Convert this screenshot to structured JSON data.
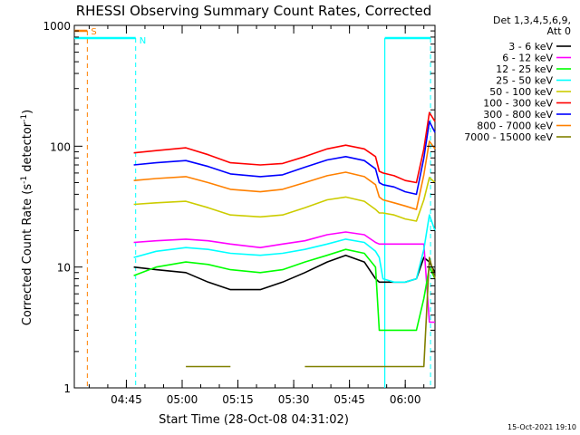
{
  "chart_data": {
    "type": "line",
    "title": "RHESSI Observing Summary Count Rates, Corrected",
    "xlabel": "Start Time (28-Oct-08 04:31:02)",
    "ylabel_main": "Corrected Count Rate (s",
    "ylabel_sup1": "-1",
    "ylabel_mid": " detector",
    "ylabel_sup2": "-1",
    "ylabel_end": ")",
    "y_scale": "log",
    "ylim": [
      1,
      1000
    ],
    "xlim_minutes": [
      0,
      97
    ],
    "y_ticks": [
      {
        "value": 1,
        "label": "1"
      },
      {
        "value": 10,
        "label": "10"
      },
      {
        "value": 100,
        "label": "100"
      },
      {
        "value": 1000,
        "label": "1000"
      }
    ],
    "x_ticks": [
      {
        "minutes": 14,
        "label": "04:45"
      },
      {
        "minutes": 29,
        "label": "05:00"
      },
      {
        "minutes": 44,
        "label": "05:15"
      },
      {
        "minutes": 59,
        "label": "05:30"
      },
      {
        "minutes": 74,
        "label": "05:45"
      },
      {
        "minutes": 89,
        "label": "06:00"
      }
    ],
    "legend_header": [
      "Det 1,3,4,5,6,9,",
      "Att 0"
    ],
    "legend_position": "right",
    "series": [
      {
        "name": "3 - 6 keV",
        "color": "#000000",
        "x": [
          16,
          22,
          30,
          36,
          42,
          50,
          56,
          62,
          68,
          73,
          78,
          81,
          82,
          83,
          86,
          89,
          92,
          94,
          95.5,
          97
        ],
        "y": [
          10,
          9.5,
          9,
          7.5,
          6.5,
          6.5,
          7.5,
          9,
          11,
          12.5,
          11,
          8,
          7.5,
          7.5,
          7.5,
          7.5,
          8,
          12,
          11,
          9
        ]
      },
      {
        "name": "6 - 12 keV",
        "color": "#ff00ff",
        "x": [
          16,
          22,
          30,
          36,
          42,
          50,
          56,
          62,
          68,
          73,
          78,
          81,
          82,
          83,
          86,
          89,
          92,
          94,
          95.5,
          97
        ],
        "y": [
          16,
          16.5,
          17,
          16.5,
          15.5,
          14.5,
          15.5,
          16.5,
          18.5,
          19.5,
          18.5,
          16,
          15.5,
          15.5,
          15.5,
          15.5,
          15.5,
          15.5,
          3.5,
          3.5
        ]
      },
      {
        "name": "12 - 25 keV",
        "color": "#00ff00",
        "x": [
          16,
          22,
          30,
          36,
          42,
          50,
          56,
          62,
          68,
          73,
          78,
          81,
          82,
          83,
          86,
          89,
          92,
          94,
          95.5,
          97
        ],
        "y": [
          8.5,
          10,
          11,
          10.5,
          9.5,
          9,
          9.5,
          11,
          12.5,
          14,
          13,
          10,
          3,
          3,
          3,
          3,
          3,
          5.5,
          10,
          8
        ]
      },
      {
        "name": "25 - 50 keV",
        "color": "#00ffff",
        "x": [
          16,
          22,
          30,
          36,
          42,
          50,
          56,
          62,
          68,
          73,
          78,
          81,
          82,
          83,
          86,
          89,
          92,
          94,
          95.5,
          97
        ],
        "y": [
          12,
          13.5,
          14.5,
          14,
          13,
          12.5,
          13,
          14,
          15.5,
          17,
          16,
          13.5,
          12,
          8,
          7.5,
          7.5,
          8,
          14,
          27,
          20
        ]
      },
      {
        "name": "50 - 100 keV",
        "color": "#cccc00",
        "x": [
          16,
          22,
          30,
          36,
          42,
          50,
          56,
          62,
          68,
          73,
          78,
          81,
          82,
          83,
          86,
          89,
          92,
          94,
          95.5,
          97
        ],
        "y": [
          33,
          34,
          35,
          31,
          27,
          26,
          27,
          31,
          36,
          38,
          35,
          30,
          28,
          28,
          27,
          25,
          24,
          36,
          55,
          50
        ]
      },
      {
        "name": "100 - 300 keV",
        "color": "#ff0000",
        "x": [
          16,
          22,
          30,
          36,
          42,
          50,
          56,
          62,
          68,
          73,
          78,
          81,
          82,
          83,
          86,
          89,
          92,
          94,
          95.5,
          97
        ],
        "y": [
          88,
          92,
          97,
          85,
          73,
          70,
          72,
          82,
          95,
          102,
          95,
          82,
          62,
          60,
          57,
          52,
          50,
          95,
          190,
          160
        ]
      },
      {
        "name": "300 - 800 keV",
        "color": "#0000ff",
        "x": [
          16,
          22,
          30,
          36,
          42,
          50,
          56,
          62,
          68,
          73,
          78,
          81,
          82,
          83,
          86,
          89,
          92,
          94,
          95.5,
          97
        ],
        "y": [
          70,
          73,
          76,
          68,
          59,
          56,
          58,
          67,
          77,
          82,
          76,
          65,
          50,
          48,
          46,
          42,
          40,
          80,
          160,
          130
        ]
      },
      {
        "name": "800 - 7000 keV",
        "color": "#ff8000",
        "x": [
          16,
          22,
          30,
          36,
          42,
          50,
          56,
          62,
          68,
          73,
          78,
          81,
          82,
          83,
          86,
          89,
          92,
          94,
          95.5,
          97
        ],
        "y": [
          52,
          54,
          56,
          50,
          44,
          42,
          44,
          50,
          57,
          61,
          56,
          48,
          38,
          36,
          34,
          32,
          30,
          58,
          110,
          95
        ]
      },
      {
        "name": "7000 - 15000 keV",
        "color": "#808000",
        "x": [
          16,
          22,
          30,
          36,
          42,
          50,
          56,
          62,
          68,
          73,
          78,
          81,
          82,
          83,
          86,
          89,
          92,
          94,
          95.5,
          97
        ],
        "y": [
          null,
          null,
          1.5,
          1.5,
          1.5,
          null,
          null,
          1.5,
          1.5,
          1.5,
          1.5,
          1.5,
          1.5,
          1.5,
          1.5,
          1.5,
          1.5,
          1.5,
          12,
          8
        ]
      }
    ],
    "markers": {
      "S": {
        "label": "S",
        "color": "#ff8000"
      },
      "N": {
        "label": "N",
        "color": "#00ffff"
      }
    },
    "timestamp": "15-Oct-2021 19:10"
  }
}
